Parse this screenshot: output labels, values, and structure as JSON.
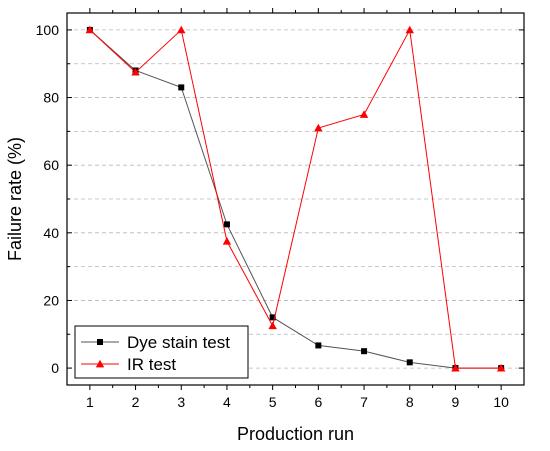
{
  "chart_data": {
    "type": "line",
    "xlabel": "Production run",
    "ylabel": "Failure rate (%)",
    "x": [
      1,
      2,
      3,
      4,
      5,
      6,
      7,
      8,
      9,
      10
    ],
    "xlim": [
      0.5,
      10.5
    ],
    "ylim": [
      -5,
      105
    ],
    "xticks": [
      1,
      2,
      3,
      4,
      5,
      6,
      7,
      8,
      9,
      10
    ],
    "yticks": [
      0,
      20,
      40,
      60,
      80,
      100
    ],
    "grid": "horizontal dashed",
    "legend_position": "bottom-left",
    "series": [
      {
        "name": "Dye stain test",
        "color": "#000000",
        "line_color": "#555555",
        "marker": "square",
        "values": [
          100,
          88,
          83,
          42.5,
          15,
          6.7,
          5,
          1.7,
          0,
          0
        ]
      },
      {
        "name": "IR test",
        "color": "#ff0000",
        "line_color": "#ff0000",
        "marker": "triangle",
        "values": [
          100,
          87.5,
          100,
          37.5,
          12.5,
          71,
          75,
          100,
          0,
          0
        ]
      }
    ]
  }
}
